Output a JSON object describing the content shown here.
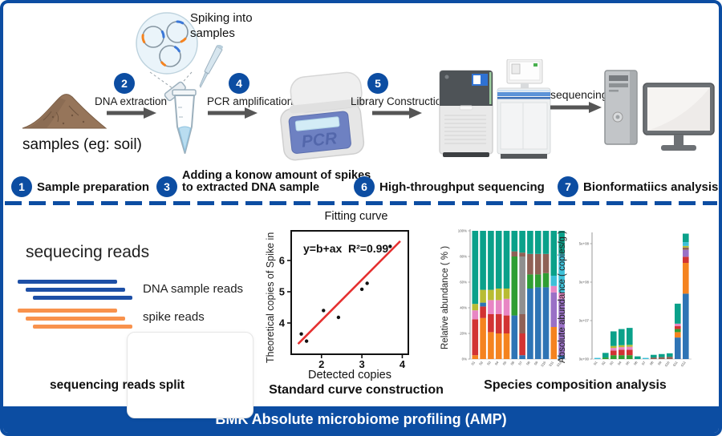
{
  "theme": {
    "blue": "#0c4da2"
  },
  "banner": {
    "title": "BMK Absolute microbiome profiling (AMP)"
  },
  "workflow": {
    "samples_caption": "samples  (eg: soil)",
    "spiking_caption": "Spiking into samples",
    "sequencing_caption": "sequencing",
    "pcr_screen_label": "PCR",
    "steps": [
      {
        "num": "1",
        "label": "Sample preparation"
      },
      {
        "num": "2",
        "label": "DNA extraction"
      },
      {
        "num": "3",
        "label": "Adding a konow amount of spikes to extracted DNA sample"
      },
      {
        "num": "4",
        "label": "PCR amplification"
      },
      {
        "num": "5",
        "label": "Library Construction"
      },
      {
        "num": "6",
        "label": "High-throughput sequencing"
      },
      {
        "num": "7",
        "label": "Bionformatiics analysis"
      }
    ]
  },
  "reads_panel": {
    "title": "sequecing reads",
    "dna_reads_label": "DNA sample reads",
    "spike_reads_label": "spike reads",
    "caption": "sequencing reads split",
    "dna_color": "#1d4fa6",
    "spike_color": "#f8924d"
  },
  "species_caption": "Species composition analysis",
  "palette": {
    "teal": "#0aa18a",
    "orange": "#f5831f",
    "red": "#d23333",
    "pink": "#e886c4",
    "olive": "#b8bc33",
    "blue": "#2e74b5",
    "gray": "#8f8f8f",
    "brown": "#8f6156",
    "green": "#2f9e33",
    "purple": "#9a70c6",
    "cyan": "#3ec0d8"
  },
  "chart_data": [
    {
      "id": "fitting_curve",
      "type": "scatter",
      "title": "Fitting curve",
      "annotation_equation": "y=b+ax",
      "annotation_r2": "R²=0.99",
      "xlabel": "Detected copies",
      "ylabel": "Theoretical copies of Spike in",
      "caption": "Standard curve construction",
      "xlim": [
        1.25,
        4.15
      ],
      "ylim": [
        3.0,
        6.95
      ],
      "xticks": [
        2,
        3,
        4
      ],
      "yticks": [
        4,
        5,
        6
      ],
      "points": [
        [
          1.5,
          3.65
        ],
        [
          1.63,
          3.42
        ],
        [
          2.05,
          4.4
        ],
        [
          2.42,
          4.18
        ],
        [
          3.0,
          5.08
        ],
        [
          3.13,
          5.27
        ],
        [
          3.7,
          6.45
        ]
      ],
      "fit_line": {
        "x1": 1.42,
        "y1": 3.33,
        "x2": 3.95,
        "y2": 6.62,
        "color": "#e53030"
      }
    },
    {
      "id": "relative_abundance",
      "type": "stacked_bar",
      "ylabel": "Relative abundance ( % )",
      "ymax": 100,
      "ytick_values": [
        0,
        20,
        40,
        60,
        80,
        100
      ],
      "yticks": [
        "0%",
        "20%",
        "40%",
        "60%",
        "80%",
        "100%"
      ],
      "categories": [
        "S1",
        "S2",
        "S3",
        "S4",
        "S5",
        "S6",
        "S7",
        "S8",
        "S9",
        "S10",
        "S11",
        "S12"
      ],
      "bars": [
        [
          [
            "orange",
            3
          ],
          [
            "red",
            28
          ],
          [
            "pink",
            7
          ],
          [
            "olive",
            5
          ],
          [
            "teal",
            57
          ]
        ],
        [
          [
            "orange",
            32
          ],
          [
            "red",
            9
          ],
          [
            "blue",
            3
          ],
          [
            "olive",
            10
          ],
          [
            "teal",
            46
          ]
        ],
        [
          [
            "orange",
            21
          ],
          [
            "red",
            14
          ],
          [
            "pink",
            11
          ],
          [
            "olive",
            8
          ],
          [
            "teal",
            46
          ]
        ],
        [
          [
            "orange",
            20
          ],
          [
            "red",
            15
          ],
          [
            "pink",
            11
          ],
          [
            "olive",
            9
          ],
          [
            "teal",
            45
          ]
        ],
        [
          [
            "orange",
            20
          ],
          [
            "red",
            14
          ],
          [
            "pink",
            13
          ],
          [
            "olive",
            8
          ],
          [
            "teal",
            45
          ]
        ],
        [
          [
            "blue",
            34
          ],
          [
            "green",
            46
          ],
          [
            "brown",
            4
          ],
          [
            "teal",
            16
          ]
        ],
        [
          [
            "blue",
            3
          ],
          [
            "red",
            17
          ],
          [
            "brown",
            15
          ],
          [
            "gray",
            45
          ],
          [
            "brown",
            3
          ],
          [
            "teal",
            17
          ]
        ],
        [
          [
            "blue",
            55
          ],
          [
            "green",
            11
          ],
          [
            "brown",
            16
          ],
          [
            "teal",
            18
          ]
        ],
        [
          [
            "blue",
            56
          ],
          [
            "green",
            10
          ],
          [
            "brown",
            16
          ],
          [
            "teal",
            18
          ]
        ],
        [
          [
            "blue",
            56
          ],
          [
            "green",
            11
          ],
          [
            "brown",
            15
          ],
          [
            "teal",
            18
          ]
        ],
        [
          [
            "orange",
            25
          ],
          [
            "purple",
            27
          ],
          [
            "pink",
            5
          ],
          [
            "cyan",
            8
          ],
          [
            "teal",
            35
          ]
        ],
        [
          [
            "blue",
            3
          ],
          [
            "purple",
            44
          ],
          [
            "pink",
            5
          ],
          [
            "cyan",
            30
          ],
          [
            "teal",
            18
          ]
        ]
      ]
    },
    {
      "id": "absolute_abundance",
      "type": "stacked_bar",
      "ylabel": "Absolute abundance ( copies/g )",
      "unit": "1e8 copies/g",
      "ymax": 1.72,
      "ytick_values": [
        0,
        0.5,
        1.0,
        1.5
      ],
      "yticks": [
        "0.0e+00",
        "5.0e+07",
        "1.0e+08",
        "1.5e+08"
      ],
      "categories": [
        "S1",
        "S2",
        "S3",
        "S4",
        "S5",
        "S6",
        "S7",
        "S8",
        "S9",
        "S10",
        "S11",
        "S12"
      ],
      "bars": [
        [
          [
            "cyan",
            0.015
          ]
        ],
        [
          [
            "green",
            0.02
          ],
          [
            "teal",
            0.06
          ]
        ],
        [
          [
            "green",
            0.05
          ],
          [
            "red",
            0.06
          ],
          [
            "pink",
            0.035
          ],
          [
            "olive",
            0.025
          ],
          [
            "teal",
            0.19
          ]
        ],
        [
          [
            "green",
            0.05
          ],
          [
            "red",
            0.07
          ],
          [
            "pink",
            0.035
          ],
          [
            "olive",
            0.025
          ],
          [
            "teal",
            0.21
          ]
        ],
        [
          [
            "green",
            0.05
          ],
          [
            "red",
            0.07
          ],
          [
            "pink",
            0.04
          ],
          [
            "olive",
            0.025
          ],
          [
            "teal",
            0.22
          ]
        ],
        [
          [
            "teal",
            0.035
          ]
        ],
        [
          [
            "cyan",
            0.015
          ]
        ],
        [
          [
            "brown",
            0.02
          ],
          [
            "teal",
            0.035
          ]
        ],
        [
          [
            "brown",
            0.025
          ],
          [
            "teal",
            0.04
          ]
        ],
        [
          [
            "brown",
            0.03
          ],
          [
            "teal",
            0.045
          ]
        ],
        [
          [
            "blue",
            0.28
          ],
          [
            "orange",
            0.07
          ],
          [
            "green",
            0.04
          ],
          [
            "red",
            0.04
          ],
          [
            "pink",
            0.03
          ],
          [
            "teal",
            0.26
          ]
        ],
        [
          [
            "blue",
            0.85
          ],
          [
            "orange",
            0.4
          ],
          [
            "red",
            0.08
          ],
          [
            "purple",
            0.09
          ],
          [
            "brown",
            0.03
          ],
          [
            "olive",
            0.02
          ],
          [
            "cyan",
            0.05
          ],
          [
            "teal",
            0.11
          ]
        ]
      ]
    }
  ]
}
